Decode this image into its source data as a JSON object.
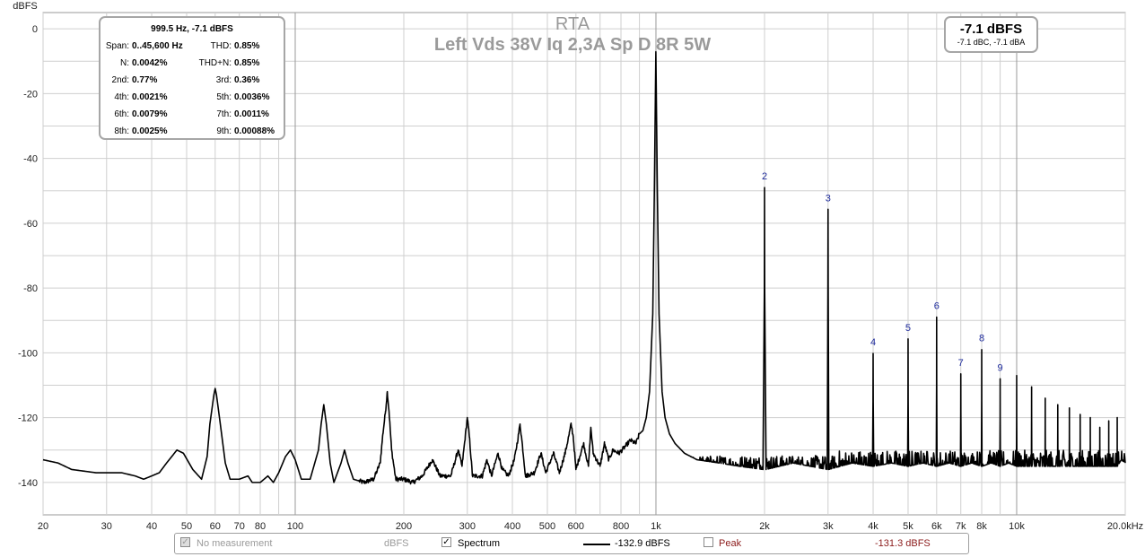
{
  "chart_data": {
    "type": "line",
    "title": "RTA",
    "subtitle": "Left Vds 38V Iq 2,3A Sp D 8R 5W",
    "ylabel": "dBFS",
    "xlabel": "",
    "x_scale": "log",
    "xlim": [
      20,
      20000
    ],
    "ylim": [
      -150,
      5
    ],
    "grid": true,
    "y_ticks": [
      0,
      -20,
      -40,
      -60,
      -80,
      -100,
      -120,
      -140
    ],
    "y_tick_labels": [
      "0",
      "-20",
      "-40",
      "-60",
      "-80",
      "-100",
      "-120",
      "-140"
    ],
    "x_ticks": [
      20,
      30,
      40,
      50,
      60,
      70,
      80,
      100,
      200,
      300,
      400,
      500,
      600,
      800,
      1000,
      2000,
      3000,
      4000,
      5000,
      6000,
      7000,
      8000,
      10000,
      20000
    ],
    "x_tick_labels": [
      "20",
      "30",
      "40",
      "50",
      "60",
      "70",
      "80",
      "100",
      "200",
      "300",
      "400",
      "500",
      "600",
      "800",
      "1k",
      "2k",
      "3k",
      "4k",
      "5k",
      "6k",
      "7k",
      "8k",
      "10k",
      "20.0kHz"
    ],
    "noise_floor": {
      "below_1k": -137,
      "above_1k": -133
    },
    "series": [
      {
        "name": "Spectrum",
        "color": "#000000",
        "points": [
          [
            20,
            -133
          ],
          [
            22,
            -134
          ],
          [
            24,
            -136
          ],
          [
            28,
            -137
          ],
          [
            33,
            -137
          ],
          [
            36,
            -138
          ],
          [
            38,
            -139
          ],
          [
            40,
            -138
          ],
          [
            42,
            -137
          ],
          [
            44,
            -134
          ],
          [
            47,
            -130
          ],
          [
            49,
            -131
          ],
          [
            52,
            -136
          ],
          [
            55,
            -139
          ],
          [
            57,
            -132
          ],
          [
            58,
            -122
          ],
          [
            59.5,
            -113
          ],
          [
            60,
            -111
          ],
          [
            60.5,
            -113
          ],
          [
            62,
            -122
          ],
          [
            64,
            -134
          ],
          [
            66,
            -139
          ],
          [
            70,
            -139
          ],
          [
            74,
            -138
          ],
          [
            76,
            -140
          ],
          [
            80,
            -140
          ],
          [
            84,
            -138
          ],
          [
            87,
            -140
          ],
          [
            90,
            -137
          ],
          [
            94,
            -132
          ],
          [
            97,
            -130
          ],
          [
            100,
            -133
          ],
          [
            104,
            -139
          ],
          [
            110,
            -139
          ],
          [
            116,
            -130
          ],
          [
            118,
            -122
          ],
          [
            120,
            -116
          ],
          [
            122,
            -122
          ],
          [
            125,
            -134
          ],
          [
            128,
            -140
          ],
          [
            134,
            -134
          ],
          [
            137,
            -130
          ],
          [
            140,
            -134
          ],
          [
            145,
            -139
          ],
          [
            155,
            -140
          ],
          [
            165,
            -139
          ],
          [
            172,
            -134
          ],
          [
            175,
            -125
          ],
          [
            178,
            -118
          ],
          [
            180,
            -112
          ],
          [
            182,
            -118
          ],
          [
            185,
            -130
          ],
          [
            190,
            -139
          ],
          [
            200,
            -139
          ],
          [
            212,
            -140
          ],
          [
            225,
            -138
          ],
          [
            240,
            -133
          ],
          [
            252,
            -138
          ],
          [
            270,
            -138
          ],
          [
            283,
            -130
          ],
          [
            290,
            -135
          ],
          [
            296,
            -126
          ],
          [
            300,
            -120
          ],
          [
            304,
            -126
          ],
          [
            310,
            -138
          ],
          [
            330,
            -138
          ],
          [
            340,
            -133
          ],
          [
            350,
            -138
          ],
          [
            365,
            -131
          ],
          [
            375,
            -136
          ],
          [
            390,
            -138
          ],
          [
            405,
            -133
          ],
          [
            415,
            -126
          ],
          [
            420,
            -122
          ],
          [
            425,
            -127
          ],
          [
            435,
            -138
          ],
          [
            460,
            -137
          ],
          [
            480,
            -131
          ],
          [
            495,
            -137
          ],
          [
            520,
            -131
          ],
          [
            540,
            -137
          ],
          [
            560,
            -131
          ],
          [
            575,
            -125
          ],
          [
            582,
            -122
          ],
          [
            590,
            -126
          ],
          [
            600,
            -136
          ],
          [
            630,
            -128
          ],
          [
            650,
            -135
          ],
          [
            660,
            -123
          ],
          [
            670,
            -131
          ],
          [
            700,
            -135
          ],
          [
            720,
            -128
          ],
          [
            740,
            -133
          ],
          [
            760,
            -130
          ],
          [
            790,
            -131
          ],
          [
            820,
            -129
          ],
          [
            850,
            -127
          ],
          [
            880,
            -128
          ],
          [
            900,
            -125
          ],
          [
            920,
            -124
          ],
          [
            940,
            -120
          ],
          [
            960,
            -112
          ],
          [
            980,
            -88
          ],
          [
            990,
            -50
          ],
          [
            999.5,
            -7.1
          ],
          [
            1009,
            -50
          ],
          [
            1020,
            -88
          ],
          [
            1040,
            -112
          ],
          [
            1060,
            -120
          ],
          [
            1090,
            -125
          ],
          [
            1130,
            -128
          ],
          [
            1200,
            -131
          ],
          [
            1300,
            -133
          ],
          [
            1500,
            -134
          ],
          [
            1700,
            -135
          ],
          [
            1980,
            -136
          ],
          [
            1998,
            -80
          ],
          [
            2000,
            -49
          ],
          [
            2002,
            -80
          ],
          [
            2020,
            -136
          ],
          [
            2400,
            -134
          ],
          [
            2985,
            -136
          ],
          [
            2997,
            -80
          ],
          [
            3000,
            -55.7
          ],
          [
            3003,
            -80
          ],
          [
            3015,
            -136
          ],
          [
            3500,
            -134
          ],
          [
            3985,
            -135
          ],
          [
            3997,
            -115
          ],
          [
            4000,
            -100.2
          ],
          [
            4003,
            -115
          ],
          [
            4015,
            -135
          ],
          [
            4500,
            -134
          ],
          [
            4985,
            -135
          ],
          [
            4997,
            -115
          ],
          [
            5000,
            -95.7
          ],
          [
            5003,
            -115
          ],
          [
            5015,
            -135
          ],
          [
            5500,
            -134
          ],
          [
            5985,
            -135
          ],
          [
            5997,
            -110
          ],
          [
            6000,
            -89
          ],
          [
            6003,
            -110
          ],
          [
            6015,
            -135
          ],
          [
            6500,
            -134
          ],
          [
            6985,
            -135
          ],
          [
            6997,
            -118
          ],
          [
            7000,
            -106.5
          ],
          [
            7003,
            -118
          ],
          [
            7015,
            -135
          ],
          [
            7500,
            -134
          ],
          [
            7985,
            -135
          ],
          [
            7997,
            -115
          ],
          [
            8000,
            -99
          ],
          [
            8003,
            -115
          ],
          [
            8015,
            -135
          ],
          [
            8500,
            -134
          ],
          [
            8985,
            -135
          ],
          [
            8997,
            -120
          ],
          [
            9000,
            -108
          ],
          [
            9003,
            -120
          ],
          [
            9015,
            -135
          ],
          [
            9500,
            -134
          ],
          [
            9985,
            -135
          ],
          [
            9997,
            -120
          ],
          [
            10000,
            -107
          ],
          [
            10003,
            -120
          ],
          [
            10015,
            -135
          ],
          [
            10985,
            -135
          ],
          [
            10997,
            -120
          ],
          [
            11000,
            -110.5
          ],
          [
            11003,
            -120
          ],
          [
            11015,
            -135
          ],
          [
            11985,
            -135
          ],
          [
            11997,
            -122
          ],
          [
            12000,
            -114
          ],
          [
            12003,
            -122
          ],
          [
            12015,
            -135
          ],
          [
            12985,
            -135
          ],
          [
            12997,
            -124
          ],
          [
            13000,
            -116
          ],
          [
            13003,
            -124
          ],
          [
            13015,
            -135
          ],
          [
            13985,
            -135
          ],
          [
            13997,
            -125
          ],
          [
            14000,
            -117
          ],
          [
            14003,
            -125
          ],
          [
            14015,
            -135
          ],
          [
            14985,
            -135
          ],
          [
            14997,
            -126
          ],
          [
            15000,
            -119
          ],
          [
            15003,
            -126
          ],
          [
            15015,
            -135
          ],
          [
            15985,
            -135
          ],
          [
            15997,
            -128
          ],
          [
            16000,
            -120
          ],
          [
            16003,
            -128
          ],
          [
            16015,
            -135
          ],
          [
            16985,
            -135
          ],
          [
            16997,
            -128
          ],
          [
            17000,
            -123
          ],
          [
            17003,
            -128
          ],
          [
            17015,
            -135
          ],
          [
            17985,
            -135
          ],
          [
            17997,
            -130
          ],
          [
            18000,
            -121
          ],
          [
            18003,
            -130
          ],
          [
            18015,
            -135
          ],
          [
            18985,
            -135
          ],
          [
            18997,
            -129
          ],
          [
            19000,
            -120
          ],
          [
            19003,
            -129
          ],
          [
            19015,
            -135
          ],
          [
            19500,
            -133
          ],
          [
            20000,
            -134
          ]
        ]
      }
    ],
    "harmonic_labels": [
      {
        "label": "2",
        "x": 2000,
        "y": -49
      },
      {
        "label": "3",
        "x": 3000,
        "y": -55.7
      },
      {
        "label": "4",
        "x": 4000,
        "y": -100.2
      },
      {
        "label": "5",
        "x": 5000,
        "y": -95.7
      },
      {
        "label": "6",
        "x": 6000,
        "y": -89
      },
      {
        "label": "7",
        "x": 7000,
        "y": -106.5
      },
      {
        "label": "8",
        "x": 8000,
        "y": -99
      },
      {
        "label": "9",
        "x": 9000,
        "y": -108
      }
    ]
  },
  "stats": {
    "header": "999.5 Hz, -7.1 dBFS",
    "left": [
      {
        "label": "Span:",
        "value": "0..45,600 Hz"
      },
      {
        "label": "N:",
        "value": "0.0042%"
      },
      {
        "label": "2nd:",
        "value": "0.77%"
      },
      {
        "label": "4th:",
        "value": "0.0021%"
      },
      {
        "label": "6th:",
        "value": "0.0079%"
      },
      {
        "label": "8th:",
        "value": "0.0025%"
      }
    ],
    "right": [
      {
        "label": "THD:",
        "value": "0.85%"
      },
      {
        "label": "THD+N:",
        "value": "0.85%"
      },
      {
        "label": "3rd:",
        "value": "0.36%"
      },
      {
        "label": "5th:",
        "value": "0.0036%"
      },
      {
        "label": "7th:",
        "value": "0.0011%"
      },
      {
        "label": "9th:",
        "value": "0.00088%"
      }
    ]
  },
  "level": {
    "main": "-7.1 dBFS",
    "sub": "-7.1 dBC, -7.1 dBA"
  },
  "legend": {
    "no_measurement": {
      "label": "No measurement",
      "checked": true,
      "disabled": true,
      "unit": "dBFS"
    },
    "spectrum": {
      "label": "Spectrum",
      "checked": true,
      "value": "-132.9 dBFS",
      "color": "#000000"
    },
    "peak": {
      "label": "Peak",
      "checked": false,
      "value": "-131.3 dBFS",
      "color": "#8b1a1a"
    }
  },
  "colors": {
    "grid": "#cfcfcf",
    "marker_1k": "#a0a0a0",
    "harmonic_label": "#1e2b9c",
    "title": "#9a9a9a"
  }
}
